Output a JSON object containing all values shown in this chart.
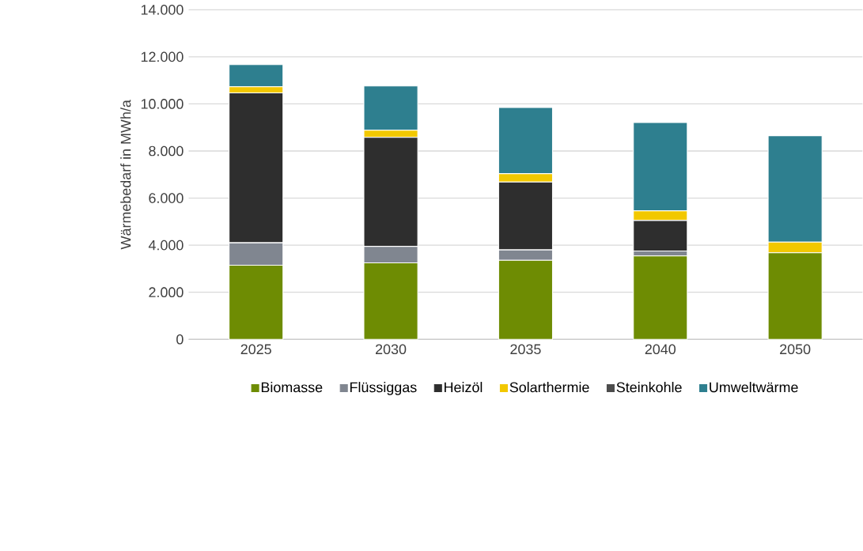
{
  "chart_data": {
    "type": "bar",
    "stacked": true,
    "ylabel": "Wärmebedarf in MWh/a",
    "categories": [
      "2025",
      "2030",
      "2035",
      "2040",
      "2050"
    ],
    "series": [
      {
        "name": "Biomasse",
        "color": "#6e8c03",
        "values": [
          3150,
          3250,
          3360,
          3540,
          3680
        ]
      },
      {
        "name": "Flüssiggas",
        "color": "#808690",
        "values": [
          950,
          700,
          440,
          210,
          0
        ]
      },
      {
        "name": "Heizöl",
        "color": "#2e2e2e",
        "values": [
          6370,
          4630,
          2880,
          1300,
          0
        ]
      },
      {
        "name": "Solarthermie",
        "color": "#f2c800",
        "values": [
          260,
          300,
          360,
          410,
          450
        ]
      },
      {
        "name": "Steinkohle",
        "color": "#4d4d4d",
        "values": [
          0,
          0,
          0,
          0,
          0
        ]
      },
      {
        "name": "Umweltwärme",
        "color": "#2e7f8f",
        "values": [
          940,
          1880,
          2810,
          3750,
          4520
        ]
      }
    ],
    "ylim": [
      0,
      14000
    ],
    "yticks": [
      {
        "value": 0,
        "label": "0"
      },
      {
        "value": 2000,
        "label": "2.000"
      },
      {
        "value": 4000,
        "label": "4.000"
      },
      {
        "value": 6000,
        "label": "6.000"
      },
      {
        "value": 8000,
        "label": "8.000"
      },
      {
        "value": 10000,
        "label": "10.000"
      },
      {
        "value": 12000,
        "label": "12.000"
      },
      {
        "value": 14000,
        "label": "14.000"
      }
    ],
    "grid": "y",
    "legend": "bottom"
  }
}
